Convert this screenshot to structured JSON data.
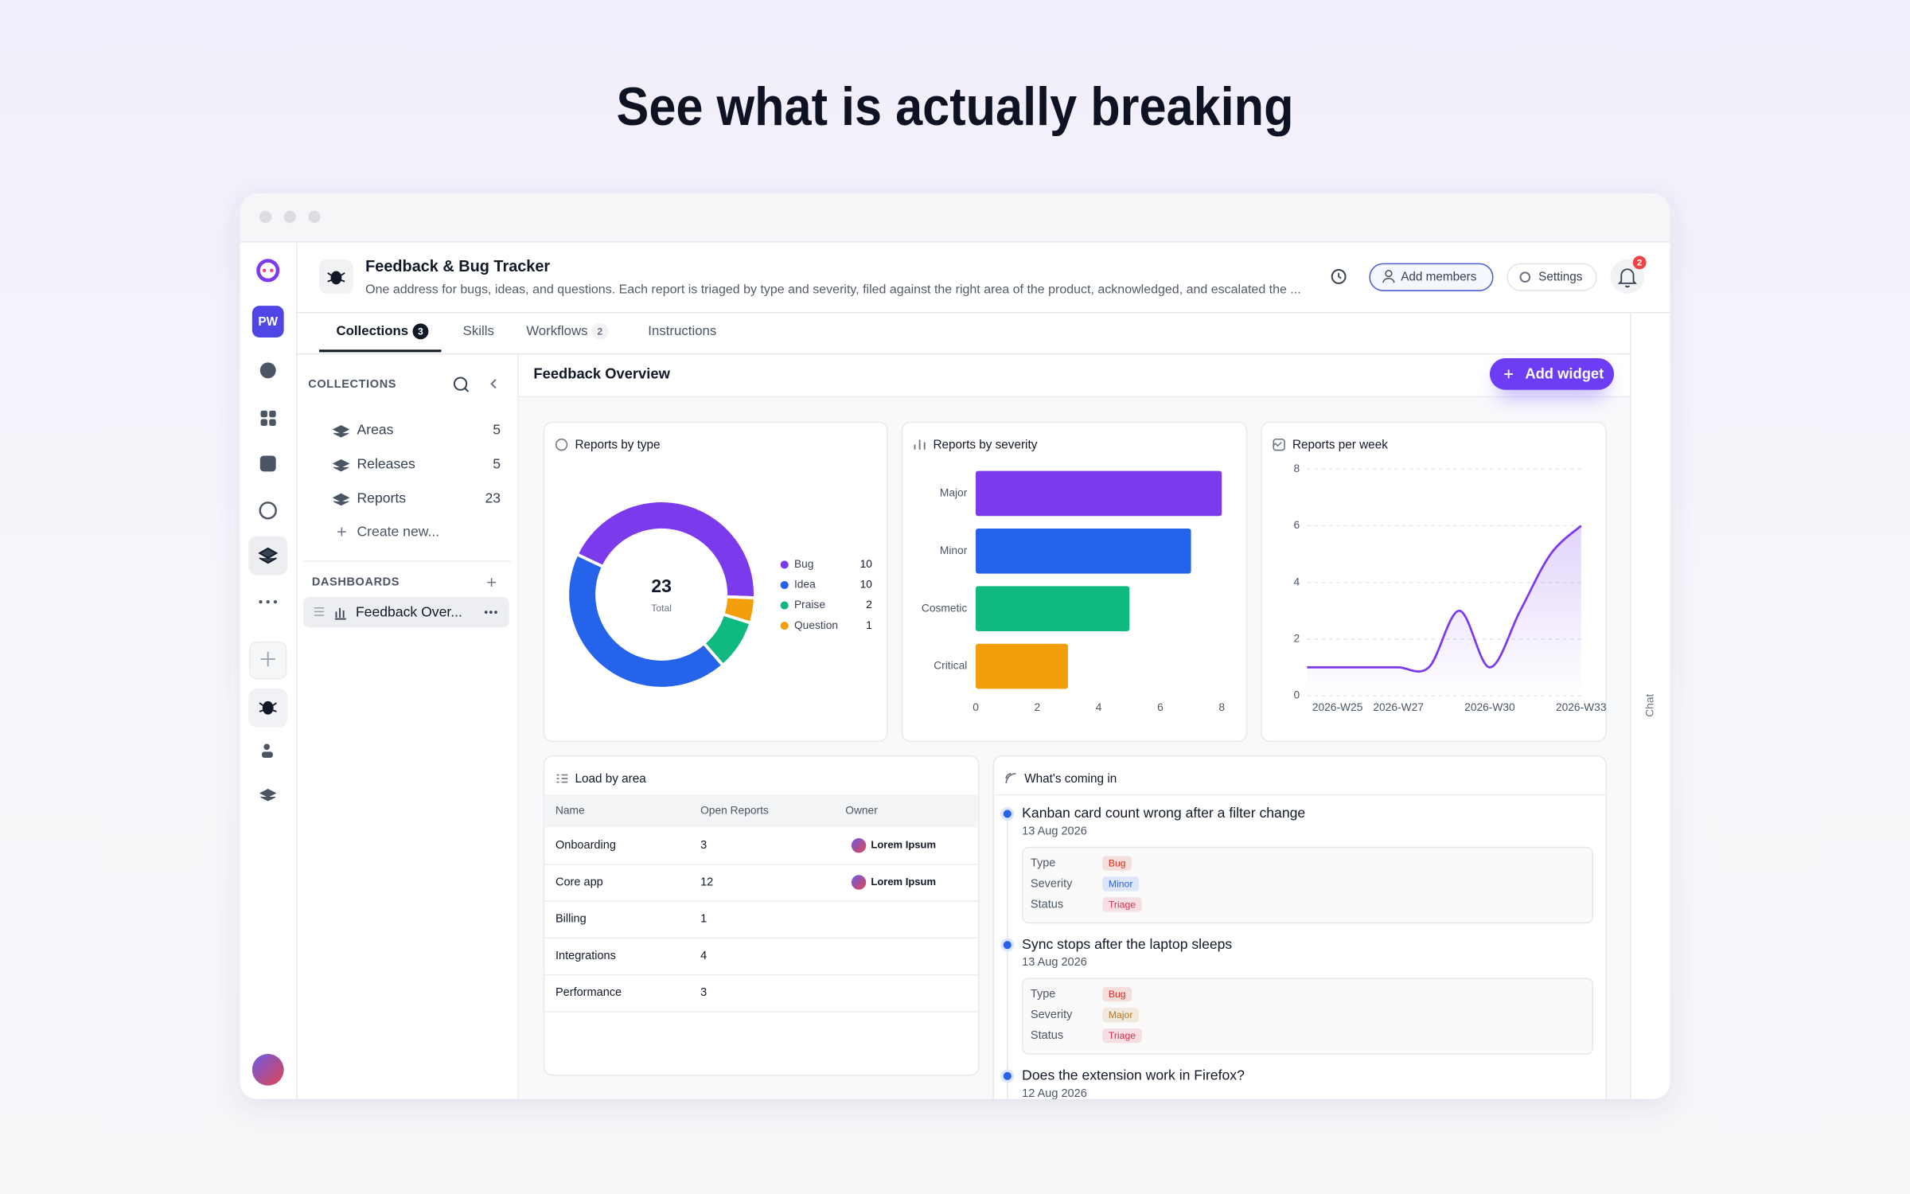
{
  "headline": "See what is actually breaking",
  "workspace": {
    "initials": "PW"
  },
  "header": {
    "title": "Feedback & Bug Tracker",
    "description": "One address for bugs, ideas, and questions. Each report is triaged by type and severity, filed against the right area of the product, acknowledged, and escalated the ...",
    "add_members": "Add members",
    "settings": "Settings",
    "notification_count": 2
  },
  "tabs": [
    {
      "label": "Collections",
      "count": 3
    },
    {
      "label": "Skills"
    },
    {
      "label": "Workflows",
      "count": 2
    },
    {
      "label": "Instructions"
    }
  ],
  "collections": {
    "heading": "COLLECTIONS",
    "items": [
      {
        "name": "Areas",
        "count": 5
      },
      {
        "name": "Releases",
        "count": 5
      },
      {
        "name": "Reports",
        "count": 23
      }
    ],
    "create": "Create new..."
  },
  "dashboards": {
    "heading": "DASHBOARDS",
    "items": [
      "Feedback Over..."
    ]
  },
  "dashboard": {
    "title": "Feedback Overview",
    "add_widget": "Add widget"
  },
  "widgets": {
    "by_type": {
      "type": "pie",
      "title": "Reports by type",
      "total": 23,
      "total_label": "Total",
      "categories": [
        "Bug",
        "Idea",
        "Praise",
        "Question"
      ],
      "values": [
        10,
        10,
        2,
        1
      ],
      "colors": [
        "#7c3aed",
        "#2563eb",
        "#10b981",
        "#f59e0b"
      ]
    },
    "by_severity": {
      "type": "bar",
      "orientation": "horizontal",
      "title": "Reports by severity",
      "categories": [
        "Major",
        "Minor",
        "Cosmetic",
        "Critical"
      ],
      "values": [
        8,
        7,
        5,
        3
      ],
      "colors": [
        "#7c3aed",
        "#2563eb",
        "#10b981",
        "#f59e0b"
      ],
      "xlim": [
        0,
        8
      ],
      "xticks": [
        0,
        2,
        4,
        6,
        8
      ]
    },
    "per_week": {
      "type": "line",
      "title": "Reports per week",
      "categories": [
        null,
        "2026-W25",
        null,
        "2026-W27",
        null,
        null,
        "2026-W30",
        null,
        null,
        "2026-W33"
      ],
      "values": [
        1,
        1,
        1,
        1,
        1,
        3,
        1,
        3,
        5,
        6
      ],
      "color": "#7c3aed",
      "ylim": [
        0,
        8
      ],
      "yticks": [
        0,
        2,
        4,
        6,
        8
      ],
      "grid": true
    }
  },
  "load_by_area": {
    "title": "Load by area",
    "columns": [
      "Name",
      "Open Reports",
      "Owner"
    ],
    "rows": [
      {
        "name": "Onboarding",
        "open": 3,
        "owner": "Lorem Ipsum"
      },
      {
        "name": "Core app",
        "open": 12,
        "owner": "Lorem Ipsum"
      },
      {
        "name": "Billing",
        "open": 1
      },
      {
        "name": "Integrations",
        "open": 4
      },
      {
        "name": "Performance",
        "open": 3
      }
    ]
  },
  "feed": {
    "title": "What's coming in",
    "items": [
      {
        "title": "Kanban card count wrong after a filter change",
        "date": "13 Aug 2026",
        "fields": [
          {
            "label": "Type",
            "value": "Bug",
            "color": "#d92d20"
          },
          {
            "label": "Severity",
            "value": "Minor",
            "color": "#2563eb"
          },
          {
            "label": "Status",
            "value": "Triage",
            "color": "#d92d50"
          }
        ]
      },
      {
        "title": "Sync stops after the laptop sleeps",
        "date": "13 Aug 2026",
        "fields": [
          {
            "label": "Type",
            "value": "Bug",
            "color": "#d92d20"
          },
          {
            "label": "Severity",
            "value": "Major",
            "color": "#b7791f"
          },
          {
            "label": "Status",
            "value": "Triage",
            "color": "#d92d50"
          }
        ]
      },
      {
        "title": "Does the extension work in Firefox?",
        "date": "12 Aug 2026"
      }
    ]
  },
  "chat": "Chat"
}
